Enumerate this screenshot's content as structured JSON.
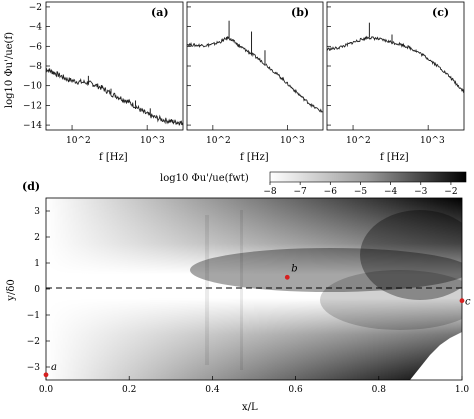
{
  "chart_data": [
    {
      "type": "line",
      "panel_label": "(a)",
      "xlabel": "f [Hz]",
      "ylabel": "log10 Φu'/ue(f)",
      "x_scale": "log",
      "x_tick_labels": [
        "10^2",
        "10^3"
      ],
      "y_tick_labels": [
        "−2",
        "−4",
        "−6",
        "−8",
        "−10",
        "−12",
        "−14"
      ],
      "ylim": [
        -14.5,
        -1.5
      ],
      "xlim": [
        45,
        3000
      ],
      "series": [
        {
          "x": [
            45,
            55,
            70,
            90,
            120,
            160,
            200,
            260,
            330,
            430,
            550,
            700,
            900,
            1150,
            1500,
            2000,
            2500,
            3000
          ],
          "y": [
            -8.3,
            -8.6,
            -9.0,
            -9.4,
            -9.6,
            -9.7,
            -9.9,
            -10.3,
            -10.8,
            -11.2,
            -11.6,
            -12.1,
            -12.7,
            -13.1,
            -13.4,
            -13.6,
            -13.7,
            -13.8
          ]
        }
      ],
      "peaks": [
        [
          165,
          -9.0
        ],
        [
          330,
          -10.3
        ],
        [
          700,
          -11.5
        ],
        [
          1100,
          -12.3
        ]
      ]
    },
    {
      "type": "line",
      "panel_label": "(b)",
      "xlabel": "f [Hz]",
      "x_scale": "log",
      "x_tick_labels": [
        "10^2",
        "10^3"
      ],
      "ylim": [
        -14.5,
        -1.5
      ],
      "xlim": [
        45,
        3000
      ],
      "series": [
        {
          "x": [
            45,
            60,
            80,
            100,
            130,
            160,
            190,
            230,
            280,
            350,
            450,
            600,
            800,
            1000,
            1300,
            1700,
            2200,
            3000
          ],
          "y": [
            -5.8,
            -5.9,
            -5.9,
            -5.8,
            -5.5,
            -5.1,
            -5.5,
            -6.0,
            -6.4,
            -6.9,
            -7.5,
            -8.3,
            -9.1,
            -9.8,
            -10.6,
            -11.4,
            -12.1,
            -12.7
          ]
        }
      ],
      "peaks": [
        [
          165,
          -3.4
        ],
        [
          330,
          -4.5
        ],
        [
          500,
          -6.4
        ]
      ]
    },
    {
      "type": "line",
      "panel_label": "(c)",
      "xlabel": "f [Hz]",
      "x_scale": "log",
      "x_tick_labels": [
        "10^2",
        "10^3"
      ],
      "ylim": [
        -14.5,
        -1.5
      ],
      "xlim": [
        45,
        3000
      ],
      "series": [
        {
          "x": [
            45,
            60,
            80,
            100,
            130,
            160,
            200,
            260,
            330,
            430,
            550,
            700,
            900,
            1150,
            1500,
            2000,
            2500,
            3000
          ],
          "y": [
            -6.3,
            -6.2,
            -5.9,
            -5.6,
            -5.3,
            -5.1,
            -5.2,
            -5.4,
            -5.6,
            -5.8,
            -6.1,
            -6.5,
            -7.0,
            -7.6,
            -8.3,
            -9.2,
            -10.0,
            -10.6
          ]
        }
      ],
      "peaks": [
        [
          165,
          -3.6
        ],
        [
          330,
          -4.8
        ]
      ]
    },
    {
      "type": "heatmap",
      "panel_label": "(d)",
      "xlabel": "x/L",
      "ylabel": "y/δ0",
      "xlim": [
        0,
        1
      ],
      "ylim": [
        -3.5,
        3.5
      ],
      "x_ticks": [
        0,
        0.2,
        0.4,
        0.6,
        0.8,
        1.0
      ],
      "y_ticks": [
        -3,
        -2,
        -1,
        0,
        1,
        2,
        3
      ],
      "x_tick_labels": [
        "0.0",
        "0.2",
        "0.4",
        "0.6",
        "0.8",
        "1.0"
      ],
      "y_tick_labels": [
        "−3",
        "−2",
        "−1",
        "0",
        "1",
        "2",
        "3"
      ],
      "colorbar": {
        "label": "log10 Φu'/ue(fwt)",
        "range": [
          -8,
          -1.5
        ],
        "ticks": [
          -8,
          -7,
          -6,
          -5,
          -4,
          -3,
          -2
        ],
        "tick_labels": [
          "−8",
          "−7",
          "−6",
          "−5",
          "−4",
          "−3",
          "−2"
        ],
        "colormap": "grey: white to black"
      },
      "reference_line_y": 0,
      "markers": [
        {
          "label": "a",
          "x": 0.0,
          "y": -3.3,
          "color": "#d62020"
        },
        {
          "label": "b",
          "x": 0.58,
          "y": 0.45,
          "color": "#d62020"
        },
        {
          "label": "c",
          "x": 1.0,
          "y": -0.45,
          "color": "#d62020"
        }
      ]
    }
  ]
}
